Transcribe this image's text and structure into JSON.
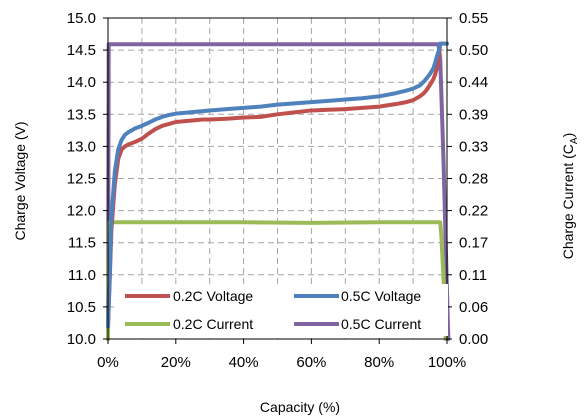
{
  "chart_data": {
    "type": "line",
    "xlabel": "Capacity (%)",
    "ylabel_left": "Charge Voltage (V)",
    "ylabel_right": "Charge Current (C",
    "ylabel_right_sub": "A",
    "ylabel_right_close": ")",
    "xlim": [
      0,
      100
    ],
    "ylim_left": [
      10.0,
      15.0
    ],
    "ylim_right": [
      0.0,
      0.55
    ],
    "x_ticks": [
      "0%",
      "20%",
      "40%",
      "60%",
      "80%",
      "100%"
    ],
    "x_tick_values": [
      0,
      20,
      40,
      60,
      80,
      100
    ],
    "y_left_ticks": [
      "10.0",
      "10.5",
      "11.0",
      "11.5",
      "12.0",
      "12.5",
      "13.0",
      "13.5",
      "14.0",
      "14.5",
      "15.0"
    ],
    "y_left_tick_values": [
      10.0,
      10.5,
      11.0,
      11.5,
      12.0,
      12.5,
      13.0,
      13.5,
      14.0,
      14.5,
      15.0
    ],
    "y_right_ticks": [
      "0.00",
      "0.06",
      "0.11",
      "0.17",
      "0.22",
      "0.28",
      "0.33",
      "0.39",
      "0.44",
      "0.50",
      "0.55"
    ],
    "grid": true,
    "legend_position": "bottom",
    "series": [
      {
        "name": "0.2C Voltage",
        "axis": "left",
        "color": "#c0504d",
        "x": [
          0,
          0.5,
          1,
          2,
          3,
          4,
          5,
          6,
          7,
          8,
          10,
          12,
          14,
          16,
          18,
          20,
          22,
          24,
          26,
          28,
          30,
          35,
          40,
          45,
          50,
          55,
          60,
          65,
          70,
          75,
          80,
          85,
          88,
          90,
          92,
          93,
          94,
          95,
          96,
          96.5,
          97,
          97.5,
          97.8,
          98
        ],
        "y": [
          10.2,
          10.9,
          11.7,
          12.4,
          12.8,
          12.95,
          13.0,
          13.03,
          13.05,
          13.07,
          13.12,
          13.2,
          13.27,
          13.32,
          13.35,
          13.38,
          13.39,
          13.4,
          13.41,
          13.42,
          13.42,
          13.43,
          13.45,
          13.46,
          13.5,
          13.53,
          13.56,
          13.57,
          13.58,
          13.6,
          13.62,
          13.66,
          13.69,
          13.72,
          13.78,
          13.82,
          13.88,
          13.96,
          14.05,
          14.12,
          14.22,
          14.35,
          14.5,
          14.6
        ]
      },
      {
        "name": "0.5C Voltage",
        "axis": "left",
        "color": "#4f81bd",
        "x": [
          0,
          0.5,
          1,
          2,
          3,
          4,
          5,
          6,
          7,
          8,
          10,
          12,
          14,
          16,
          18,
          20,
          22,
          24,
          26,
          28,
          30,
          35,
          40,
          45,
          50,
          55,
          60,
          65,
          70,
          75,
          80,
          85,
          88,
          90,
          92,
          93,
          94,
          95,
          96,
          96.5,
          97,
          97.5,
          97.8,
          98,
          99,
          100
        ],
        "y": [
          10.2,
          11.0,
          11.9,
          12.6,
          12.95,
          13.1,
          13.18,
          13.22,
          13.25,
          13.28,
          13.32,
          13.37,
          13.42,
          13.46,
          13.49,
          13.51,
          13.52,
          13.53,
          13.54,
          13.55,
          13.56,
          13.58,
          13.6,
          13.62,
          13.65,
          13.67,
          13.69,
          13.71,
          13.73,
          13.75,
          13.78,
          13.83,
          13.87,
          13.9,
          13.95,
          14.0,
          14.06,
          14.13,
          14.22,
          14.3,
          14.4,
          14.48,
          14.55,
          14.6,
          14.6,
          14.6
        ]
      },
      {
        "name": "0.2C Current",
        "axis": "right",
        "color": "#9bbb59",
        "x": [
          0,
          0.3,
          20,
          40,
          60,
          80,
          98,
          98.3,
          99,
          99.6
        ],
        "y": [
          0.0,
          0.2,
          0.2,
          0.2,
          0.199,
          0.2,
          0.2,
          0.18,
          0.1,
          0.0
        ]
      },
      {
        "name": "0.5C Current",
        "axis": "right",
        "color": "#8064a2",
        "x": [
          0,
          0.2,
          20,
          40,
          60,
          80,
          97.5,
          98,
          99,
          100,
          100.4
        ],
        "y": [
          0.0,
          0.505,
          0.505,
          0.505,
          0.505,
          0.505,
          0.505,
          0.48,
          0.3,
          0.08,
          0.0
        ]
      }
    ]
  }
}
